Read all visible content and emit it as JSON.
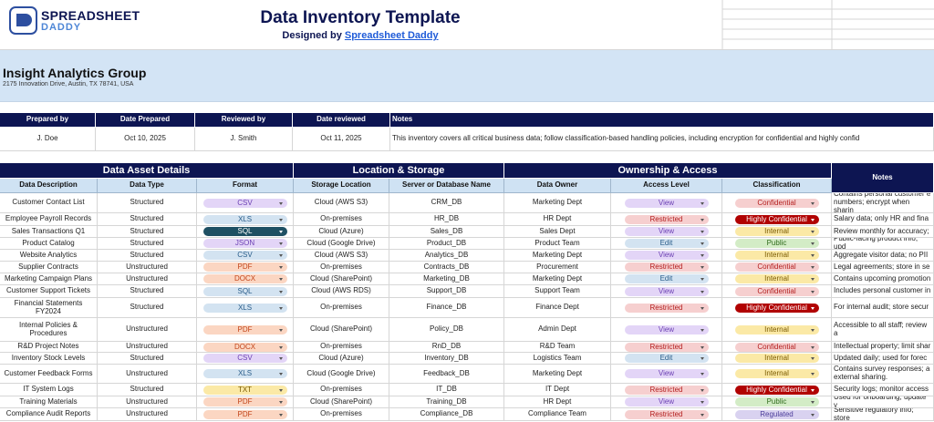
{
  "header": {
    "logo_top": "SPREADSHEET",
    "logo_bottom": "DADDY",
    "title": "Data Inventory Template",
    "byline": "Designed by",
    "byline_link": "Spreadsheet Daddy"
  },
  "organization": {
    "name": "Insight Analytics Group",
    "address": "2175 Innovation Drive, Austin, TX 78741, USA"
  },
  "review": {
    "columns": [
      "Prepared by",
      "Date Prepared",
      "Reviewed by",
      "Date reviewed",
      "Notes"
    ],
    "values": [
      "J. Doe",
      "Oct 10, 2025",
      "J. Smith",
      "Oct 11, 2025",
      "This inventory covers all critical business data; follow classification-based handling policies, including encryption for confidential and highly confid"
    ]
  },
  "inventory": {
    "groups": [
      "Data Asset Details",
      "Location & Storage",
      "Ownership & Access",
      "Notes"
    ],
    "columns": [
      "Data Description",
      "Data Type",
      "Format",
      "Storage Location",
      "Server or Database Name",
      "Data Owner",
      "Access Level",
      "Classification"
    ],
    "rows": [
      [
        "Customer Contact List",
        "Structured",
        "CSV",
        "Cloud (AWS S3)",
        "CRM_DB",
        "Marketing Dept",
        "View",
        "Confidential",
        "Contains personal customer e numbers; encrypt when sharin"
      ],
      [
        "Employee Payroll Records",
        "Structured",
        "XLS",
        "On-premises",
        "HR_DB",
        "HR Dept",
        "Restricted",
        "Highly Confidential",
        "Salary data; only HR and fina"
      ],
      [
        "Sales Transactions Q1",
        "Structured",
        "SQL",
        "Cloud (Azure)",
        "Sales_DB",
        "Sales Dept",
        "View",
        "Internal",
        "Review monthly for accuracy;"
      ],
      [
        "Product Catalog",
        "Structured",
        "JSON",
        "Cloud (Google Drive)",
        "Product_DB",
        "Product Team",
        "Edit",
        "Public",
        "Public-facing product info; upd"
      ],
      [
        "Website Analytics",
        "Structured",
        "CSV",
        "Cloud (AWS S3)",
        "Analytics_DB",
        "Marketing Dept",
        "View",
        "Internal",
        "Aggregate visitor data; no PII"
      ],
      [
        "Supplier Contracts",
        "Unstructured",
        "PDF",
        "On-premises",
        "Contracts_DB",
        "Procurement",
        "Restricted",
        "Confidential",
        "Legal agreements; store in se"
      ],
      [
        "Marketing Campaign Plans",
        "Unstructured",
        "DOCX",
        "Cloud (SharePoint)",
        "Marketing_DB",
        "Marketing Dept",
        "Edit",
        "Internal",
        "Contains upcoming promotion"
      ],
      [
        "Customer Support Tickets",
        "Structured",
        "SQL",
        "Cloud (AWS RDS)",
        "Support_DB",
        "Support Team",
        "View",
        "Confidential",
        "Includes personal customer in"
      ],
      [
        "Financial Statements FY2024",
        "Structured",
        "XLS",
        "On-premises",
        "Finance_DB",
        "Finance Dept",
        "Restricted",
        "Highly Confidential",
        "For internal audit; store secur"
      ],
      [
        "Internal Policies & Procedures",
        "Unstructured",
        "PDF",
        "Cloud (SharePoint)",
        "Policy_DB",
        "Admin Dept",
        "View",
        "Internal",
        "Accessible to all staff; review a"
      ],
      [
        "R&D Project Notes",
        "Unstructured",
        "DOCX",
        "On-premises",
        "RnD_DB",
        "R&D Team",
        "Restricted",
        "Confidential",
        "Intellectual property; limit shar"
      ],
      [
        "Inventory Stock Levels",
        "Structured",
        "CSV",
        "Cloud (Azure)",
        "Inventory_DB",
        "Logistics Team",
        "Edit",
        "Internal",
        "Updated daily; used for forec"
      ],
      [
        "Customer Feedback Forms",
        "Unstructured",
        "XLS",
        "Cloud (Google Drive)",
        "Feedback_DB",
        "Marketing Dept",
        "View",
        "Internal",
        "Contains survey responses; a external sharing."
      ],
      [
        "IT System Logs",
        "Structured",
        "TXT",
        "On-premises",
        "IT_DB",
        "IT Dept",
        "Restricted",
        "Highly Confidential",
        "Security logs; monitor access"
      ],
      [
        "Training Materials",
        "Unstructured",
        "PDF",
        "Cloud (SharePoint)",
        "Training_DB",
        "HR Dept",
        "View",
        "Public",
        "Used for onboarding; update y"
      ],
      [
        "Compliance Audit Reports",
        "Unstructured",
        "PDF",
        "On-premises",
        "Compliance_DB",
        "Compliance Team",
        "Restricted",
        "Regulated",
        "Sensitive regulatory info; store"
      ]
    ]
  }
}
